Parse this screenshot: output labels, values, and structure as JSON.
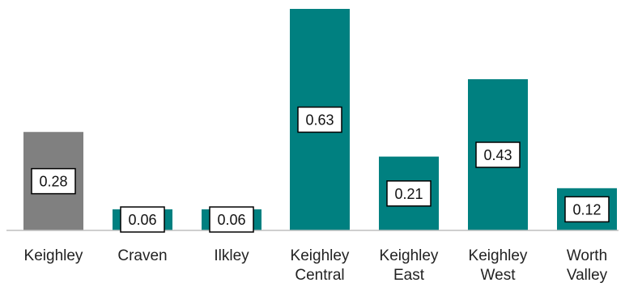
{
  "chart_data": {
    "type": "bar",
    "title": "",
    "xlabel": "",
    "ylabel": "",
    "categories": [
      [
        "Keighley"
      ],
      [
        "Craven"
      ],
      [
        "Ilkley"
      ],
      [
        "Keighley",
        "Central"
      ],
      [
        "Keighley",
        "East"
      ],
      [
        "Keighley",
        "West"
      ],
      [
        "Worth",
        "Valley"
      ]
    ],
    "values": [
      0.28,
      0.06,
      0.06,
      0.63,
      0.21,
      0.43,
      0.12
    ],
    "value_labels": [
      "0.28",
      "0.06",
      "0.06",
      "0.63",
      "0.21",
      "0.43",
      "0.12"
    ],
    "bar_colors": [
      "#808080",
      "#008080",
      "#008080",
      "#008080",
      "#008080",
      "#008080",
      "#008080"
    ],
    "ylim": [
      0,
      0.63
    ],
    "grid": false,
    "legend": "none"
  }
}
